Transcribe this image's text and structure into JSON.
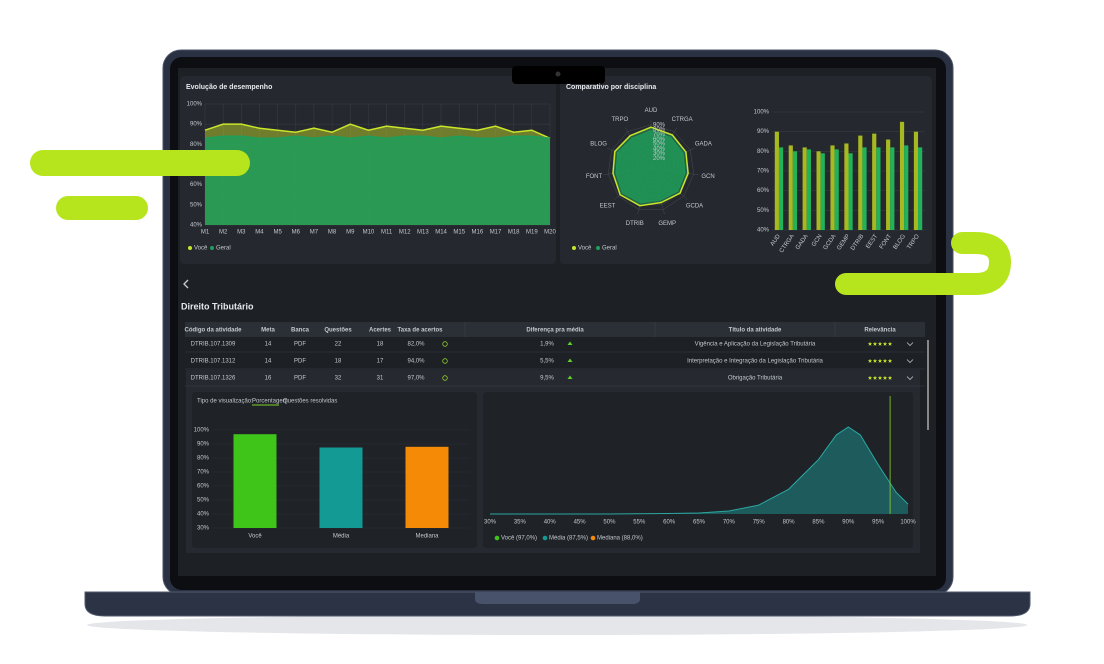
{
  "performance": {
    "type": "line",
    "title": "Evolução de desempenho",
    "categories": [
      "M1",
      "M2",
      "M3",
      "M4",
      "M5",
      "M6",
      "M7",
      "M8",
      "M9",
      "M10",
      "M11",
      "M12",
      "M13",
      "M14",
      "M15",
      "M16",
      "M17",
      "M18",
      "M19",
      "M20"
    ],
    "ylim": [
      40,
      100
    ],
    "yticks": [
      {
        "value": 40,
        "label": "40%"
      },
      {
        "value": 50,
        "label": "50%"
      },
      {
        "value": 60,
        "label": "60%"
      },
      {
        "value": 70,
        "label": "70%"
      },
      {
        "value": 80,
        "label": "80%"
      },
      {
        "value": 90,
        "label": "90%"
      },
      {
        "value": 100,
        "label": "100%"
      }
    ],
    "grid": true,
    "series": [
      {
        "name": "Você",
        "color": "#c9e52a",
        "values": [
          87,
          90,
          90,
          88,
          87,
          86,
          88,
          86,
          90,
          87,
          89,
          88,
          87,
          89,
          88,
          87,
          89,
          86,
          87,
          83
        ]
      },
      {
        "name": "Geral",
        "color": "#1f9e5a",
        "values": [
          83,
          84,
          84,
          83,
          83,
          84,
          83,
          84,
          83,
          84,
          83,
          84,
          84,
          83,
          84,
          83,
          83,
          84,
          84,
          83
        ]
      }
    ]
  },
  "comparison": {
    "title": "Comparativo por disciplina",
    "radar": {
      "type": "radar",
      "categories": [
        "AUD",
        "CTRGA",
        "GADA",
        "GCN",
        "GCDA",
        "GEMP",
        "DTRIB",
        "EEST",
        "FONT",
        "BLOG",
        "TRPO"
      ],
      "rlim": [
        0,
        100
      ],
      "rticks": [
        {
          "value": 20,
          "label": "20%"
        },
        {
          "value": 30,
          "label": "30%"
        },
        {
          "value": 40,
          "label": "40%"
        },
        {
          "value": 50,
          "label": "50%"
        },
        {
          "value": 60,
          "label": "60%"
        },
        {
          "value": 70,
          "label": "70%"
        },
        {
          "value": 80,
          "label": "80%"
        },
        {
          "value": 90,
          "label": "90%"
        }
      ],
      "series": [
        {
          "name": "Você",
          "color": "#c9e52a",
          "values": [
            85,
            82,
            80,
            78,
            80,
            75,
            82,
            85,
            80,
            83,
            80
          ]
        },
        {
          "name": "Geral",
          "color": "#1f9e5a",
          "values": [
            78,
            76,
            74,
            72,
            74,
            70,
            76,
            79,
            74,
            77,
            74
          ]
        }
      ]
    },
    "bars": {
      "type": "bar",
      "categories": [
        "AUD",
        "CTRGA",
        "GADA",
        "GCN",
        "GCDA",
        "GEMP",
        "DTRIB",
        "EEST",
        "FONT",
        "BLOG",
        "TRPO"
      ],
      "ylim": [
        40,
        100
      ],
      "yticks": [
        {
          "value": 40,
          "label": "40%"
        },
        {
          "value": 50,
          "label": "50%"
        },
        {
          "value": 60,
          "label": "60%"
        },
        {
          "value": 70,
          "label": "70%"
        },
        {
          "value": 80,
          "label": "80%"
        },
        {
          "value": 90,
          "label": "90%"
        },
        {
          "value": 100,
          "label": "100%"
        }
      ],
      "series": [
        {
          "name": "Você",
          "color": "#a8b820",
          "values": [
            90,
            83,
            82,
            80,
            83,
            84,
            88,
            89,
            86,
            95,
            90
          ]
        },
        {
          "name": "Geral",
          "color": "#22b35a",
          "values": [
            82,
            80,
            81,
            79,
            81,
            79,
            82,
            82,
            82,
            83,
            82
          ]
        }
      ]
    }
  },
  "section": {
    "title": "Direito Tributário"
  },
  "table": {
    "columns": [
      "Código da atividade",
      "Meta",
      "Banca",
      "Questões",
      "Acertes",
      "Taxa de acertos",
      "Diferença pra média",
      "Título da atividade",
      "Relevância"
    ],
    "rows": [
      [
        "DTRIB.107.1309",
        14,
        "PDF",
        22,
        18,
        "82,0%",
        "1,9%",
        "Vigência e Aplicação da Legislação Tributária",
        5
      ],
      [
        "DTRIB.107.1312",
        14,
        "PDF",
        18,
        17,
        "94,0%",
        "5,5%",
        "Interpretação e Integração da Legislação Tributária",
        5
      ],
      [
        "DTRIB.107.1326",
        16,
        "PDF",
        32,
        31,
        "97,0%",
        "9,5%",
        "Obrigação Tributária",
        5
      ]
    ]
  },
  "detail": {
    "view_label": "Tipo de visualização:",
    "tabs": [
      "Porcentagem",
      "Questões resolvidas"
    ],
    "percent_chart": {
      "type": "bar",
      "categories": [
        "Você",
        "Média",
        "Mediana"
      ],
      "values": [
        97,
        87.5,
        88
      ],
      "colors": [
        "#3fc41a",
        "#139a94",
        "#f58a07"
      ],
      "ylim": [
        30,
        100
      ],
      "yticks": [
        {
          "value": 30,
          "label": "30%"
        },
        {
          "value": 40,
          "label": "40%"
        },
        {
          "value": 50,
          "label": "50%"
        },
        {
          "value": 60,
          "label": "60%"
        },
        {
          "value": 70,
          "label": "70%"
        },
        {
          "value": 80,
          "label": "80%"
        },
        {
          "value": 90,
          "label": "90%"
        },
        {
          "value": 100,
          "label": "100%"
        }
      ]
    },
    "distribution": {
      "type": "area",
      "x": [
        30,
        40,
        50,
        60,
        65,
        70,
        75,
        80,
        85,
        88,
        90,
        92,
        95,
        98,
        100
      ],
      "values": [
        0,
        0,
        0,
        0.5,
        1,
        3,
        9,
        25,
        55,
        80,
        88,
        80,
        50,
        22,
        10
      ],
      "color": "#1d5b5d",
      "line_color": "#2aa7a0",
      "xlim": [
        30,
        100
      ],
      "xticks": [
        {
          "value": 30,
          "label": "30%"
        },
        {
          "value": 35,
          "label": "35%"
        },
        {
          "value": 40,
          "label": "40%"
        },
        {
          "value": 45,
          "label": "45%"
        },
        {
          "value": 50,
          "label": "50%"
        },
        {
          "value": 55,
          "label": "55%"
        },
        {
          "value": 60,
          "label": "60%"
        },
        {
          "value": 65,
          "label": "65%"
        },
        {
          "value": 70,
          "label": "70%"
        },
        {
          "value": 75,
          "label": "75%"
        },
        {
          "value": 80,
          "label": "80%"
        },
        {
          "value": 85,
          "label": "85%"
        },
        {
          "value": 90,
          "label": "90%"
        },
        {
          "value": 95,
          "label": "95%"
        },
        {
          "value": 100,
          "label": "100%"
        }
      ],
      "legend": [
        "Você (97,0%)",
        "Média (87,5%)",
        "Mediana (88,0%)"
      ]
    }
  }
}
